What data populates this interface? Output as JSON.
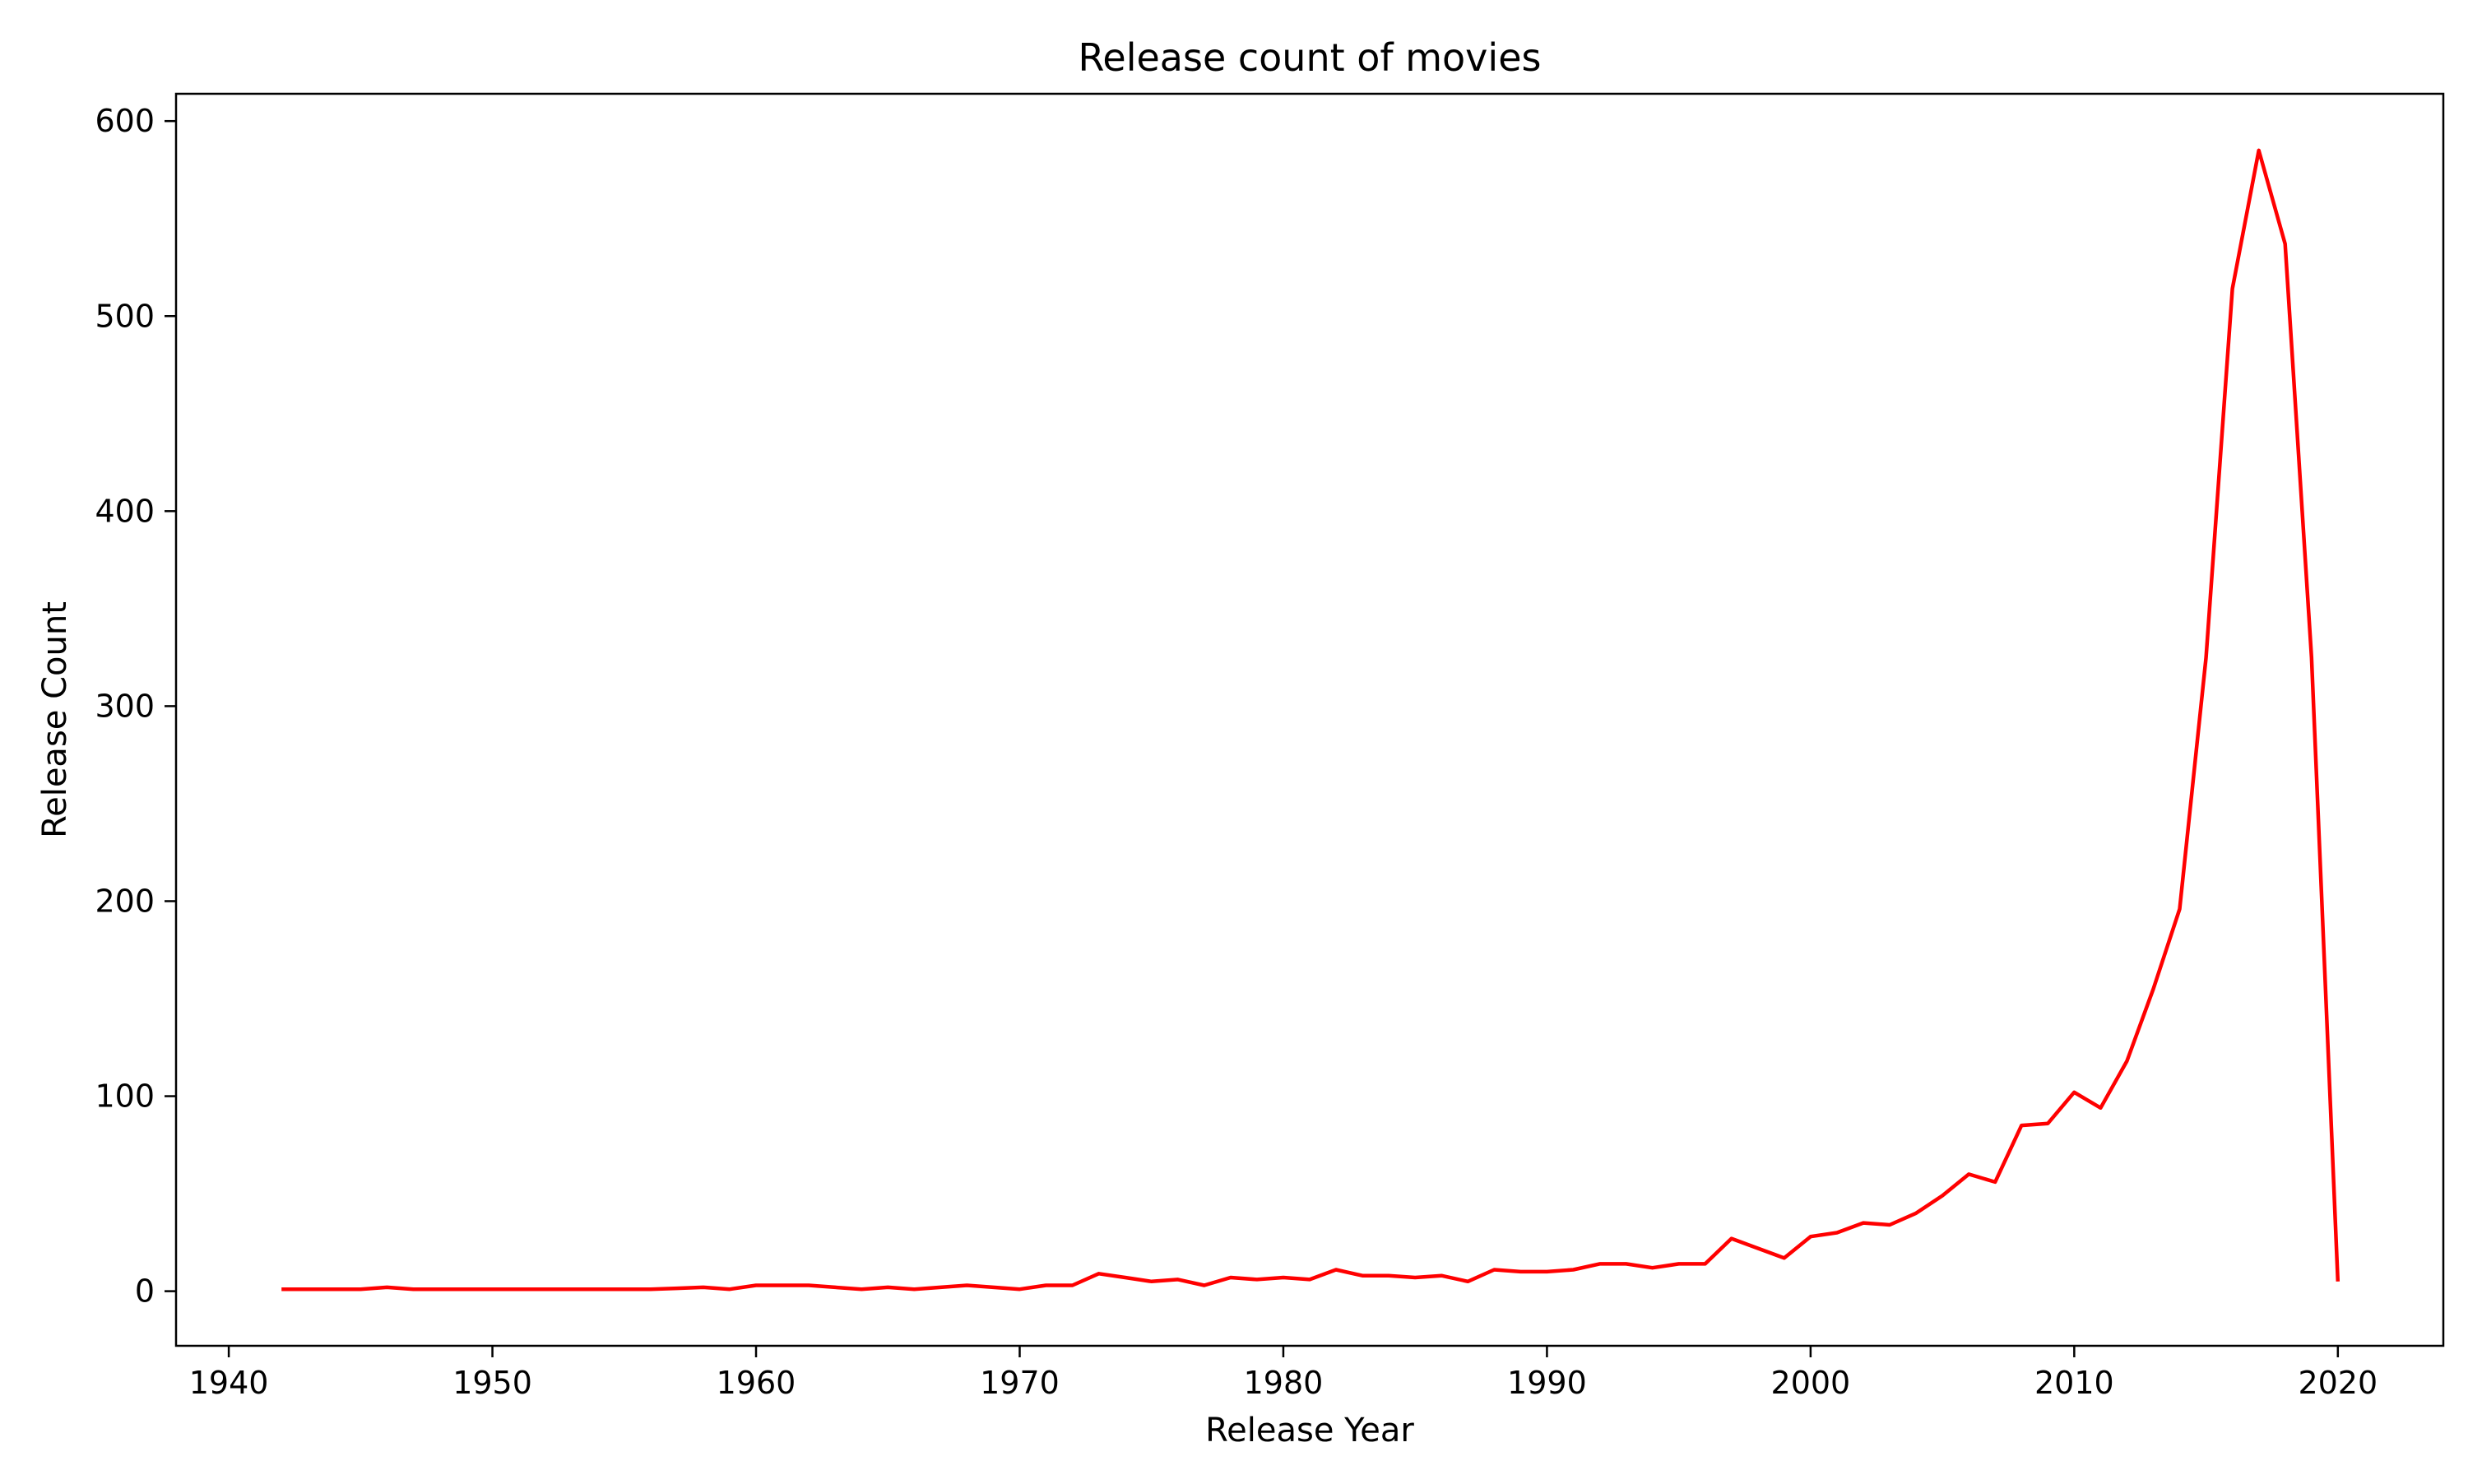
{
  "chart_data": {
    "type": "line",
    "title": "Release count of movies",
    "xlabel": "Release Year",
    "ylabel": "Release Count",
    "xlim": [
      1938,
      2024
    ],
    "ylim": [
      -28,
      614
    ],
    "xticks": [
      1940,
      1950,
      1960,
      1970,
      1980,
      1990,
      2000,
      2010,
      2020
    ],
    "yticks": [
      0,
      100,
      200,
      300,
      400,
      500,
      600
    ],
    "grid": false,
    "legend": "none",
    "series": [
      {
        "color": "#ff0000",
        "x": [
          1942,
          1943,
          1944,
          1945,
          1946,
          1947,
          1948,
          1949,
          1950,
          1951,
          1952,
          1953,
          1954,
          1955,
          1956,
          1957,
          1958,
          1959,
          1960,
          1961,
          1962,
          1963,
          1964,
          1965,
          1966,
          1967,
          1968,
          1969,
          1970,
          1971,
          1972,
          1973,
          1974,
          1975,
          1976,
          1977,
          1978,
          1979,
          1980,
          1981,
          1982,
          1983,
          1984,
          1985,
          1986,
          1987,
          1988,
          1989,
          1990,
          1991,
          1992,
          1993,
          1994,
          1995,
          1996,
          1997,
          1998,
          1999,
          2000,
          2001,
          2002,
          2003,
          2004,
          2005,
          2006,
          2007,
          2008,
          2009,
          2010,
          2011,
          2012,
          2013,
          2014,
          2015,
          2016,
          2017,
          2018,
          2019,
          2020
        ],
        "values": [
          1,
          1,
          1,
          1,
          2,
          1,
          1,
          1,
          1,
          1,
          1,
          1,
          1,
          1,
          1,
          1.5,
          2,
          1,
          3,
          3,
          3,
          2,
          1,
          2,
          1,
          2,
          3,
          2,
          1,
          3,
          3,
          9,
          7,
          5,
          6,
          3,
          7,
          6,
          7,
          6,
          11,
          8,
          8,
          7,
          8,
          5,
          11,
          10,
          10,
          11,
          14,
          14,
          12,
          14,
          14,
          27,
          22,
          17,
          28,
          30,
          35,
          34,
          40,
          49,
          60,
          56,
          85,
          86,
          102,
          94,
          118,
          155,
          196,
          325,
          514,
          585,
          537,
          325,
          5
        ]
      }
    ]
  }
}
